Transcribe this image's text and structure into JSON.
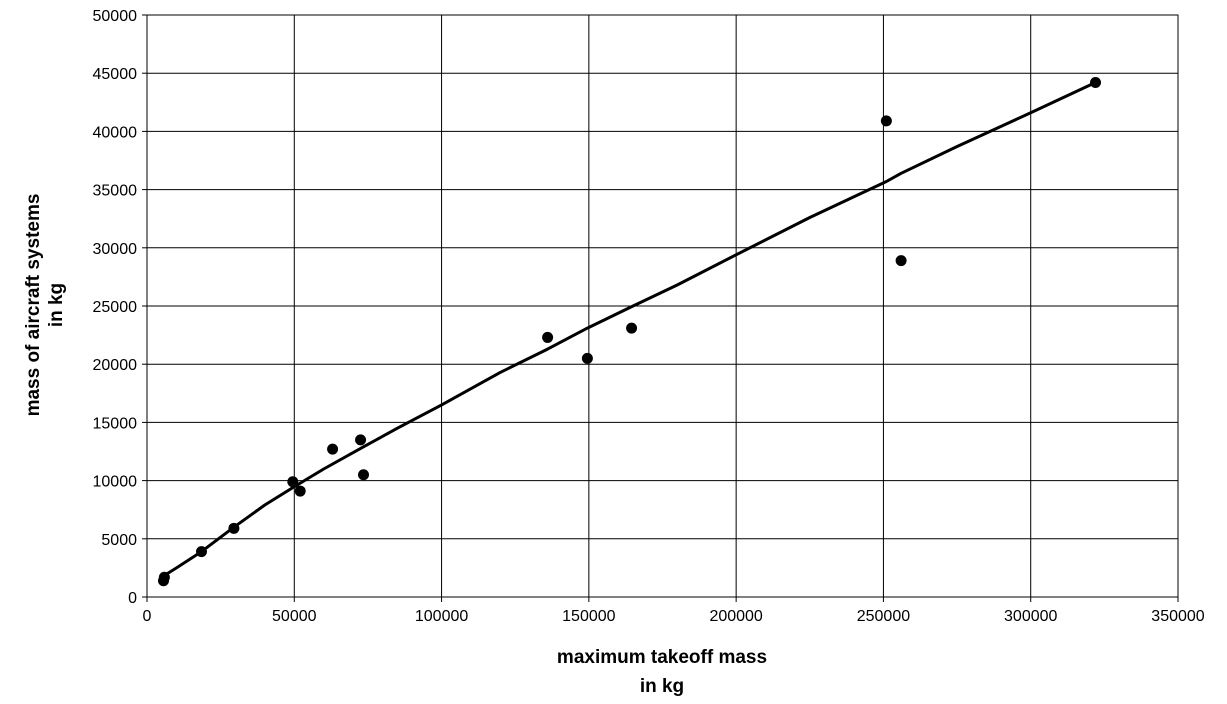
{
  "chart_data": {
    "type": "scatter",
    "title": "",
    "xlabel": [
      "maximum takeoff mass",
      "in kg"
    ],
    "ylabel": [
      "mass of aircraft systems",
      "in kg"
    ],
    "xlim": [
      0,
      350000
    ],
    "ylim": [
      0,
      50000
    ],
    "xticks": [
      0,
      50000,
      100000,
      150000,
      200000,
      250000,
      300000,
      350000
    ],
    "yticks": [
      0,
      5000,
      10000,
      15000,
      20000,
      25000,
      30000,
      35000,
      40000,
      45000,
      50000
    ],
    "grid": true,
    "legend": "none",
    "series": [
      {
        "kind": "points",
        "points": [
          {
            "x": 5600,
            "y": 1400
          },
          {
            "x": 5900,
            "y": 1700
          },
          {
            "x": 18500,
            "y": 3900
          },
          {
            "x": 29500,
            "y": 5900
          },
          {
            "x": 49500,
            "y": 9900
          },
          {
            "x": 52000,
            "y": 9100
          },
          {
            "x": 63000,
            "y": 12700
          },
          {
            "x": 72500,
            "y": 13500
          },
          {
            "x": 73500,
            "y": 10500
          },
          {
            "x": 136000,
            "y": 22300
          },
          {
            "x": 149500,
            "y": 20500
          },
          {
            "x": 164500,
            "y": 23100
          },
          {
            "x": 251000,
            "y": 40900
          },
          {
            "x": 256000,
            "y": 28900
          },
          {
            "x": 322000,
            "y": 44200
          }
        ]
      },
      {
        "kind": "fit-line",
        "points": [
          {
            "x": 5600,
            "y": 1800
          },
          {
            "x": 10000,
            "y": 2500
          },
          {
            "x": 18500,
            "y": 3900
          },
          {
            "x": 29500,
            "y": 6000
          },
          {
            "x": 40000,
            "y": 7900
          },
          {
            "x": 49500,
            "y": 9400
          },
          {
            "x": 60000,
            "y": 11000
          },
          {
            "x": 73500,
            "y": 12900
          },
          {
            "x": 85000,
            "y": 14500
          },
          {
            "x": 100000,
            "y": 16500
          },
          {
            "x": 120000,
            "y": 19300
          },
          {
            "x": 136000,
            "y": 21300
          },
          {
            "x": 149500,
            "y": 23100
          },
          {
            "x": 165000,
            "y": 25000
          },
          {
            "x": 180000,
            "y": 26800
          },
          {
            "x": 200000,
            "y": 29400
          },
          {
            "x": 225000,
            "y": 32600
          },
          {
            "x": 251000,
            "y": 35700
          },
          {
            "x": 256000,
            "y": 36400
          },
          {
            "x": 275000,
            "y": 38700
          },
          {
            "x": 300000,
            "y": 41600
          },
          {
            "x": 322000,
            "y": 44200
          }
        ]
      }
    ]
  }
}
